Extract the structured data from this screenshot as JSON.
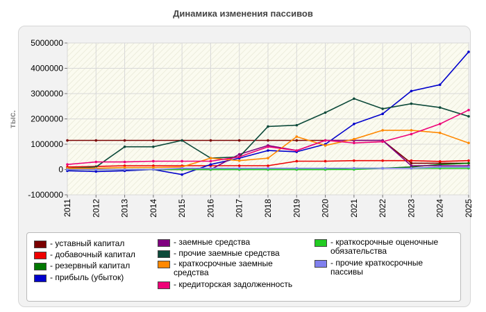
{
  "chart_data": {
    "type": "line",
    "title": "Динамика изменения пассивов",
    "ylabel": "тыс.",
    "xlabel": "",
    "x": [
      2011,
      2012,
      2013,
      2014,
      2015,
      2016,
      2017,
      2018,
      2019,
      2020,
      2021,
      2022,
      2023,
      2024,
      2025
    ],
    "ylim": [
      -1000000,
      5000000
    ],
    "yticks": [
      "5000000",
      "4000000",
      "3000000",
      "2000000",
      "1000000",
      "0",
      "-1000000"
    ],
    "ytick_values": [
      5000000,
      4000000,
      3000000,
      2000000,
      1000000,
      0,
      -1000000
    ],
    "grid": true,
    "legend_position": "bottom",
    "series": [
      {
        "name": "- уставный капитал",
        "color": "#7a0000",
        "values": [
          1150000,
          1150000,
          1150000,
          1150000,
          1150000,
          1150000,
          1150000,
          1150000,
          1150000,
          1150000,
          1150000,
          1150000,
          250000,
          250000,
          250000
        ]
      },
      {
        "name": "- добавочный капитал",
        "color": "#ee0000",
        "values": [
          100000,
          120000,
          150000,
          150000,
          150000,
          150000,
          150000,
          150000,
          330000,
          330000,
          350000,
          350000,
          350000,
          320000,
          350000
        ]
      },
      {
        "name": "- резервный капитал",
        "color": "#007700",
        "values": [
          0,
          0,
          0,
          0,
          0,
          0,
          0,
          0,
          0,
          0,
          50000,
          50000,
          100000,
          200000,
          250000
        ]
      },
      {
        "name": "- прибыль (убыток)",
        "color": "#0000cc",
        "values": [
          -50000,
          -80000,
          -50000,
          0,
          -200000,
          200000,
          450000,
          750000,
          700000,
          1000000,
          1800000,
          2200000,
          3100000,
          3350000,
          4650000
        ]
      },
      {
        "name": "- заемные средства",
        "color": "#800080",
        "values": [
          0,
          0,
          0,
          0,
          0,
          0,
          600000,
          950000,
          750000,
          1150000,
          1150000,
          1150000,
          150000,
          150000,
          150000
        ]
      },
      {
        "name": "- прочие заемные средства",
        "color": "#0d4a3a",
        "values": [
          50000,
          100000,
          900000,
          900000,
          1150000,
          450000,
          500000,
          1700000,
          1750000,
          2250000,
          2800000,
          2400000,
          2600000,
          2450000,
          2100000
        ]
      },
      {
        "name": "- краткосрочные заемные средства",
        "color": "#ff8800",
        "values": [
          50000,
          50000,
          80000,
          80000,
          100000,
          450000,
          350000,
          450000,
          1300000,
          950000,
          1200000,
          1550000,
          1550000,
          1450000,
          1050000
        ]
      },
      {
        "name": "- кредиторская задолженность",
        "color": "#ee0077",
        "values": [
          200000,
          300000,
          300000,
          330000,
          330000,
          330000,
          500000,
          900000,
          750000,
          1150000,
          1050000,
          1100000,
          1400000,
          1800000,
          2350000
        ]
      },
      {
        "name": "- краткосрочные оценочные обязательства",
        "color": "#22cc22",
        "values": [
          0,
          0,
          0,
          0,
          0,
          0,
          0,
          0,
          0,
          0,
          0,
          50000,
          50000,
          50000,
          50000
        ]
      },
      {
        "name": "- прочие краткосрочные пассивы",
        "color": "#8080ee",
        "values": [
          0,
          0,
          0,
          0,
          50000,
          50000,
          50000,
          50000,
          50000,
          50000,
          50000,
          50000,
          50000,
          100000,
          100000
        ]
      }
    ]
  }
}
